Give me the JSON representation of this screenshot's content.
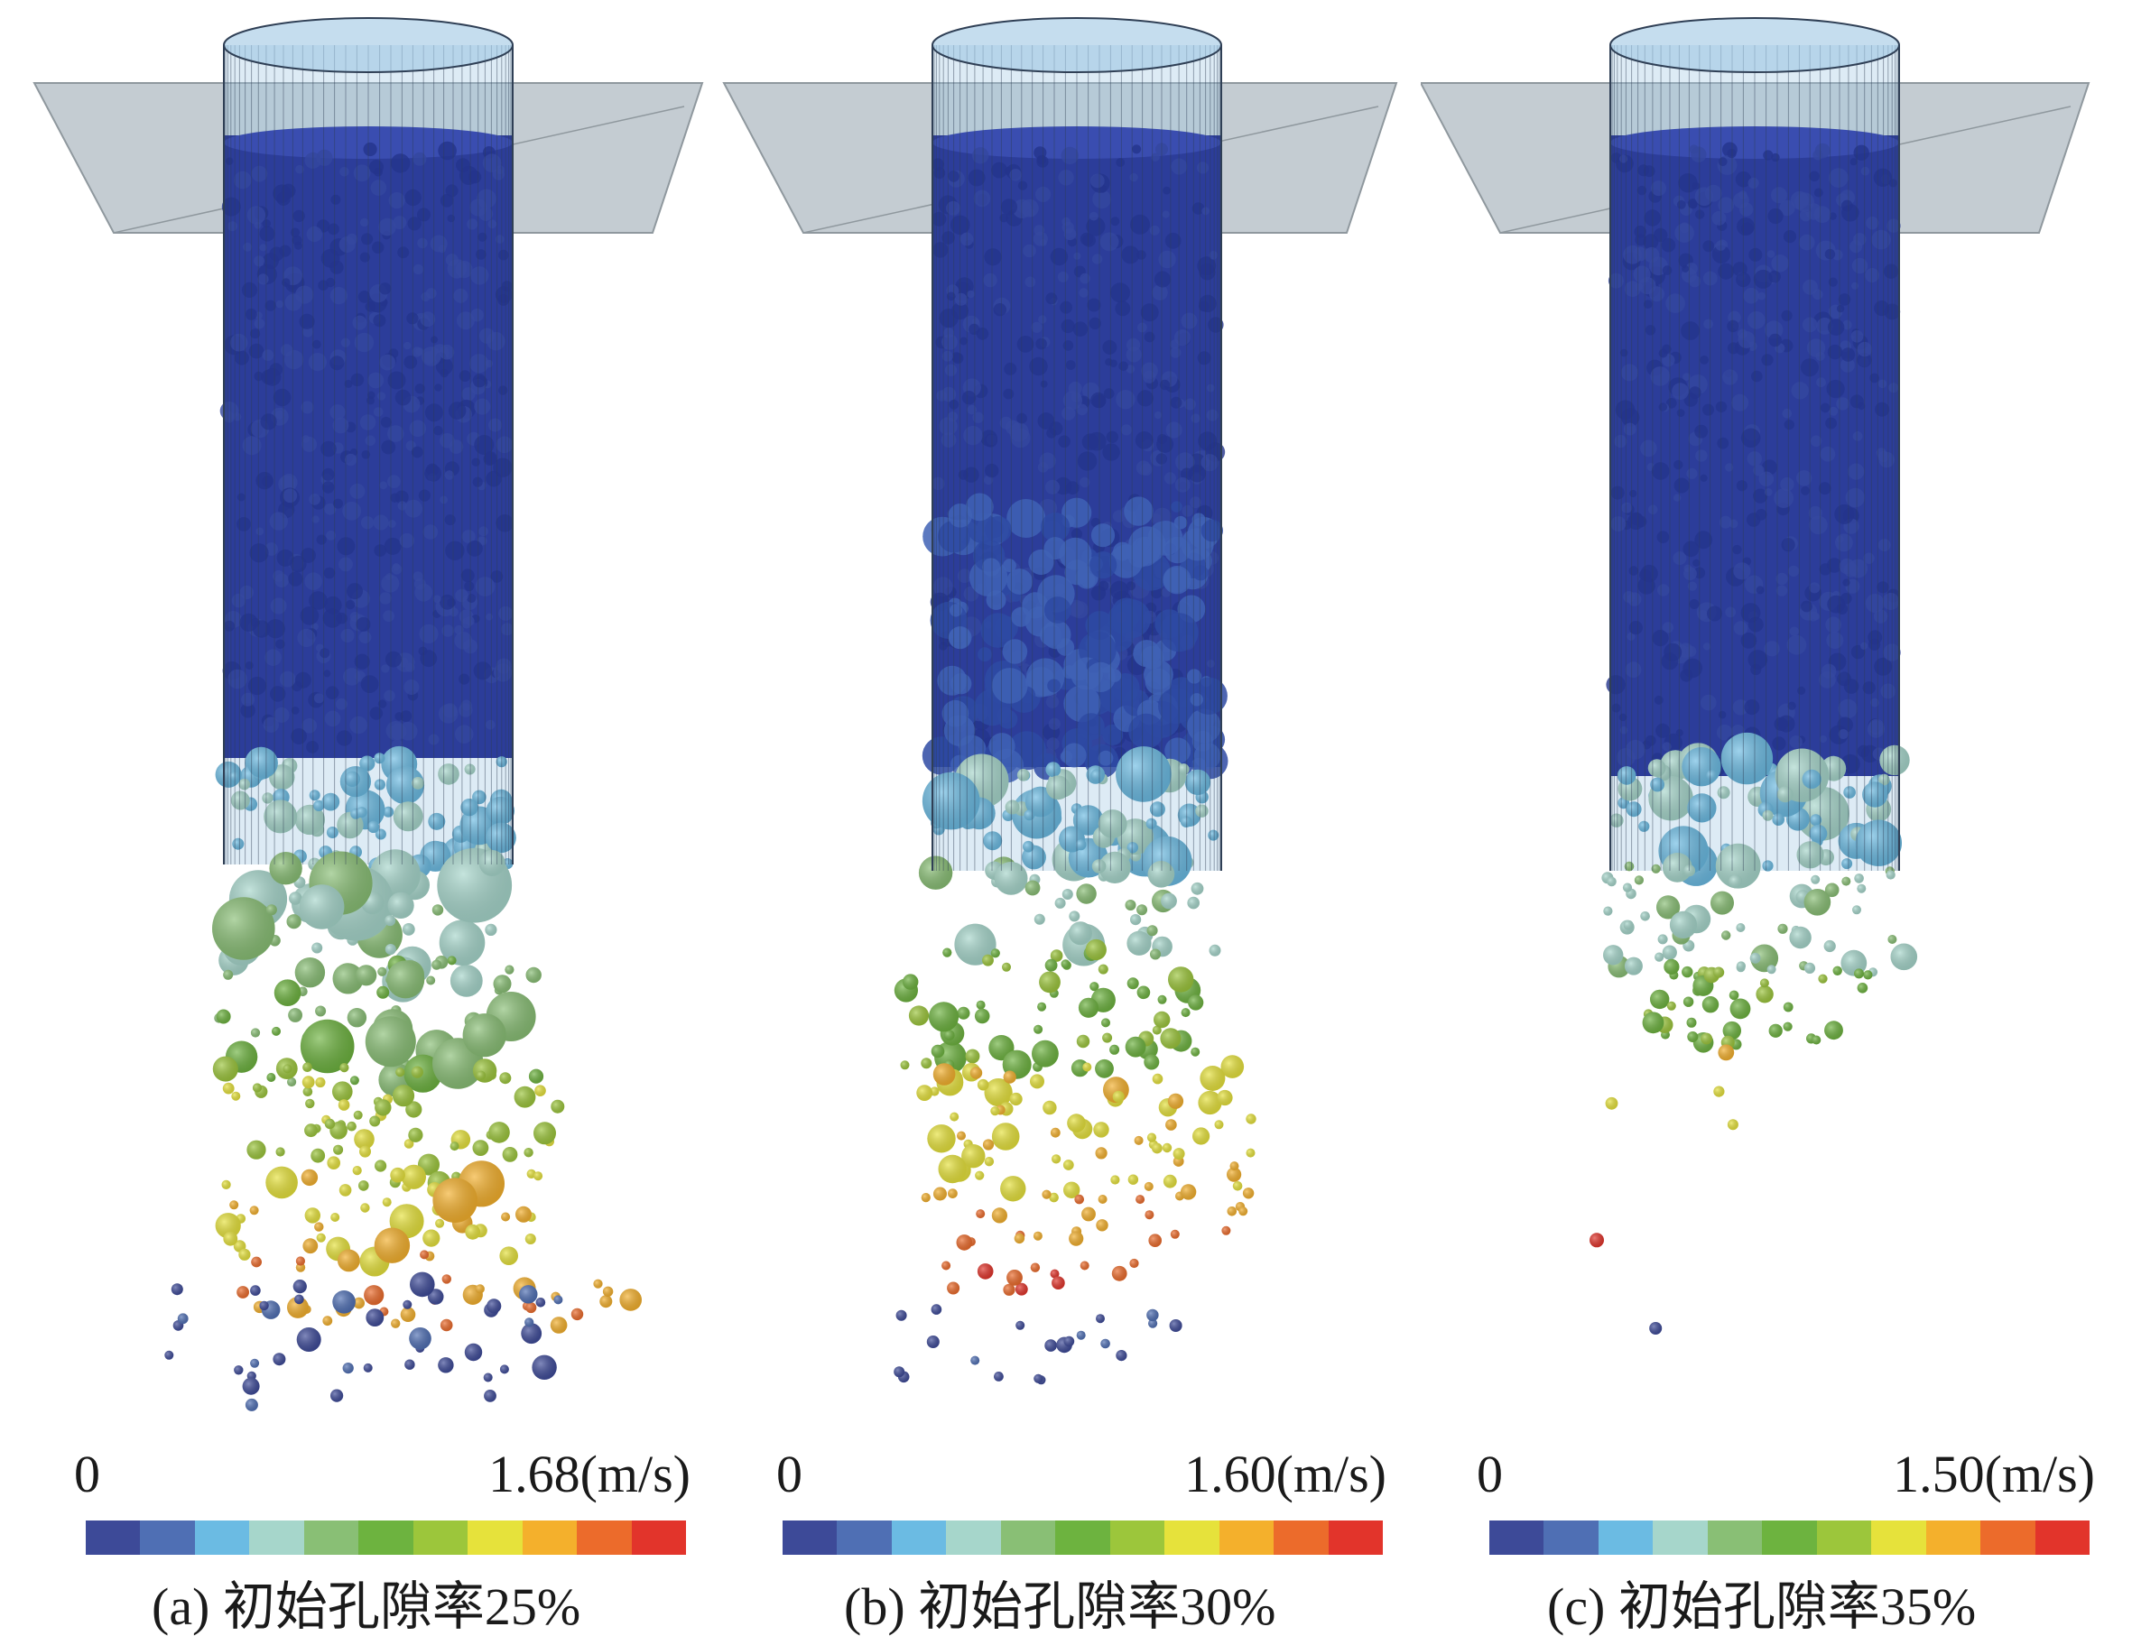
{
  "colors": {
    "platform": "#c4ccd2",
    "platform_edge": "#8f989e",
    "tube_fill": "#9fc6e3",
    "tube_line": "#2f3f55",
    "bulk": "#2c3d9a",
    "bulk_light": "#3a4db0",
    "scale": [
      "#3d4a98",
      "#4f6fb4",
      "#6bbbe3",
      "#a6d6cb",
      "#89bf75",
      "#6db33f",
      "#9cc63b",
      "#e6e23b",
      "#f4b02c",
      "#ec6b2b",
      "#e2342b"
    ]
  },
  "panels": [
    {
      "id": "a",
      "legend_min": "0",
      "legend_max_value": "1.68",
      "legend_unit": "(m/s)",
      "caption_label": "(a)",
      "caption_text": "初始孔隙率25%"
    },
    {
      "id": "b",
      "legend_min": "0",
      "legend_max_value": "1.60",
      "legend_unit": "(m/s)",
      "caption_label": "(b)",
      "caption_text": "初始孔隙率30%"
    },
    {
      "id": "c",
      "legend_min": "0",
      "legend_max_value": "1.50",
      "legend_unit": "(m/s)",
      "caption_label": "(c)",
      "caption_text": "初始孔隙率35%"
    }
  ]
}
